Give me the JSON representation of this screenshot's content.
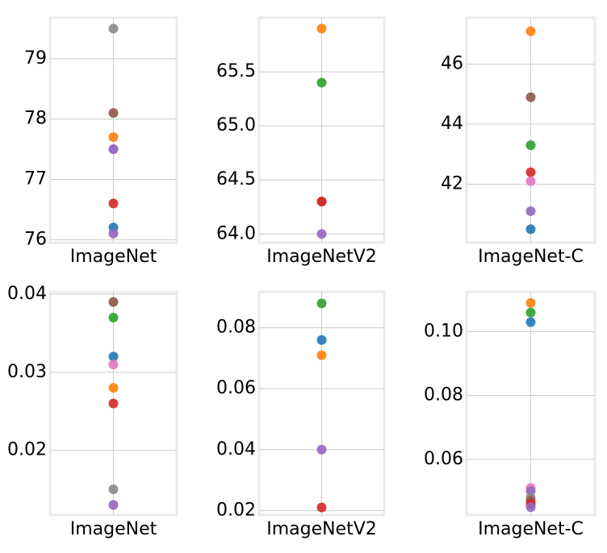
{
  "chart_data": [
    {
      "type": "scatter",
      "categories": [
        "ImageNet"
      ],
      "ylim": [
        75.95,
        79.68
      ],
      "yticks": [
        {
          "value": 76,
          "label": "76"
        },
        {
          "value": 77,
          "label": "77"
        },
        {
          "value": 78,
          "label": "78"
        },
        {
          "value": 79,
          "label": "79"
        }
      ],
      "points": [
        {
          "value": 79.5,
          "color": "#8a8a8a"
        },
        {
          "value": 78.1,
          "color": "#8c564b"
        },
        {
          "value": 77.7,
          "color": "#ff7f0e"
        },
        {
          "value": 77.5,
          "color": "#e377c2"
        },
        {
          "value": 77.5,
          "color": "#9467bd"
        },
        {
          "value": 76.6,
          "color": "#d62728"
        },
        {
          "value": 76.2,
          "color": "#1f77b4"
        },
        {
          "value": 76.1,
          "color": "#9467bd"
        }
      ],
      "grid": true
    },
    {
      "type": "scatter",
      "categories": [
        "ImageNetV2"
      ],
      "ylim": [
        63.92,
        66.0
      ],
      "yticks": [
        {
          "value": 64.0,
          "label": "64.0"
        },
        {
          "value": 64.5,
          "label": "64.5"
        },
        {
          "value": 65.0,
          "label": "65.0"
        },
        {
          "value": 65.5,
          "label": "65.5"
        }
      ],
      "points": [
        {
          "value": 65.9,
          "color": "#ff7f0e"
        },
        {
          "value": 65.4,
          "color": "#2ca02c"
        },
        {
          "value": 64.3,
          "color": "#8c564b"
        },
        {
          "value": 64.3,
          "color": "#d62728"
        },
        {
          "value": 64.0,
          "color": "#9467bd"
        }
      ],
      "grid": true
    },
    {
      "type": "scatter",
      "categories": [
        "ImageNet-C"
      ],
      "ylim": [
        40.05,
        47.55
      ],
      "yticks": [
        {
          "value": 42,
          "label": "42"
        },
        {
          "value": 44,
          "label": "44"
        },
        {
          "value": 46,
          "label": "46"
        }
      ],
      "points": [
        {
          "value": 47.1,
          "color": "#ff7f0e"
        },
        {
          "value": 44.9,
          "color": "#8c564b"
        },
        {
          "value": 43.3,
          "color": "#2ca02c"
        },
        {
          "value": 42.4,
          "color": "#d62728"
        },
        {
          "value": 42.1,
          "color": "#e377c2"
        },
        {
          "value": 41.1,
          "color": "#9467bd"
        },
        {
          "value": 40.5,
          "color": "#1f77b4"
        }
      ],
      "grid": true
    },
    {
      "type": "scatter",
      "categories": [
        "ImageNet"
      ],
      "ylim": [
        0.0117,
        0.0403
      ],
      "yticks": [
        {
          "value": 0.02,
          "label": "0.02"
        },
        {
          "value": 0.03,
          "label": "0.03"
        },
        {
          "value": 0.04,
          "label": "0.04"
        }
      ],
      "points": [
        {
          "value": 0.039,
          "color": "#8c564b"
        },
        {
          "value": 0.037,
          "color": "#2ca02c"
        },
        {
          "value": 0.032,
          "color": "#1f77b4"
        },
        {
          "value": 0.031,
          "color": "#e377c2"
        },
        {
          "value": 0.028,
          "color": "#ff7f0e"
        },
        {
          "value": 0.026,
          "color": "#d62728"
        },
        {
          "value": 0.015,
          "color": "#8a8a8a"
        },
        {
          "value": 0.013,
          "color": "#9467bd"
        }
      ],
      "grid": true
    },
    {
      "type": "scatter",
      "categories": [
        "ImageNetV2"
      ],
      "ylim": [
        0.0185,
        0.0918
      ],
      "yticks": [
        {
          "value": 0.02,
          "label": "0.02"
        },
        {
          "value": 0.04,
          "label": "0.04"
        },
        {
          "value": 0.06,
          "label": "0.06"
        },
        {
          "value": 0.08,
          "label": "0.08"
        }
      ],
      "points": [
        {
          "value": 0.088,
          "color": "#2ca02c"
        },
        {
          "value": 0.076,
          "color": "#1f77b4"
        },
        {
          "value": 0.071,
          "color": "#ff7f0e"
        },
        {
          "value": 0.04,
          "color": "#9467bd"
        },
        {
          "value": 0.021,
          "color": "#d62728"
        }
      ],
      "grid": true
    },
    {
      "type": "scatter",
      "categories": [
        "ImageNet-C"
      ],
      "ylim": [
        0.0425,
        0.1125
      ],
      "yticks": [
        {
          "value": 0.06,
          "label": "0.06"
        },
        {
          "value": 0.08,
          "label": "0.08"
        },
        {
          "value": 0.1,
          "label": "0.10"
        }
      ],
      "points": [
        {
          "value": 0.109,
          "color": "#ff7f0e"
        },
        {
          "value": 0.106,
          "color": "#2ca02c"
        },
        {
          "value": 0.103,
          "color": "#1f77b4"
        },
        {
          "value": 0.051,
          "color": "#e377c2"
        },
        {
          "value": 0.05,
          "color": "#9467bd"
        },
        {
          "value": 0.048,
          "color": "#8a8a8a"
        },
        {
          "value": 0.047,
          "color": "#8c564b"
        },
        {
          "value": 0.046,
          "color": "#d62728"
        },
        {
          "value": 0.045,
          "color": "#9467bd"
        }
      ],
      "grid": true
    }
  ]
}
